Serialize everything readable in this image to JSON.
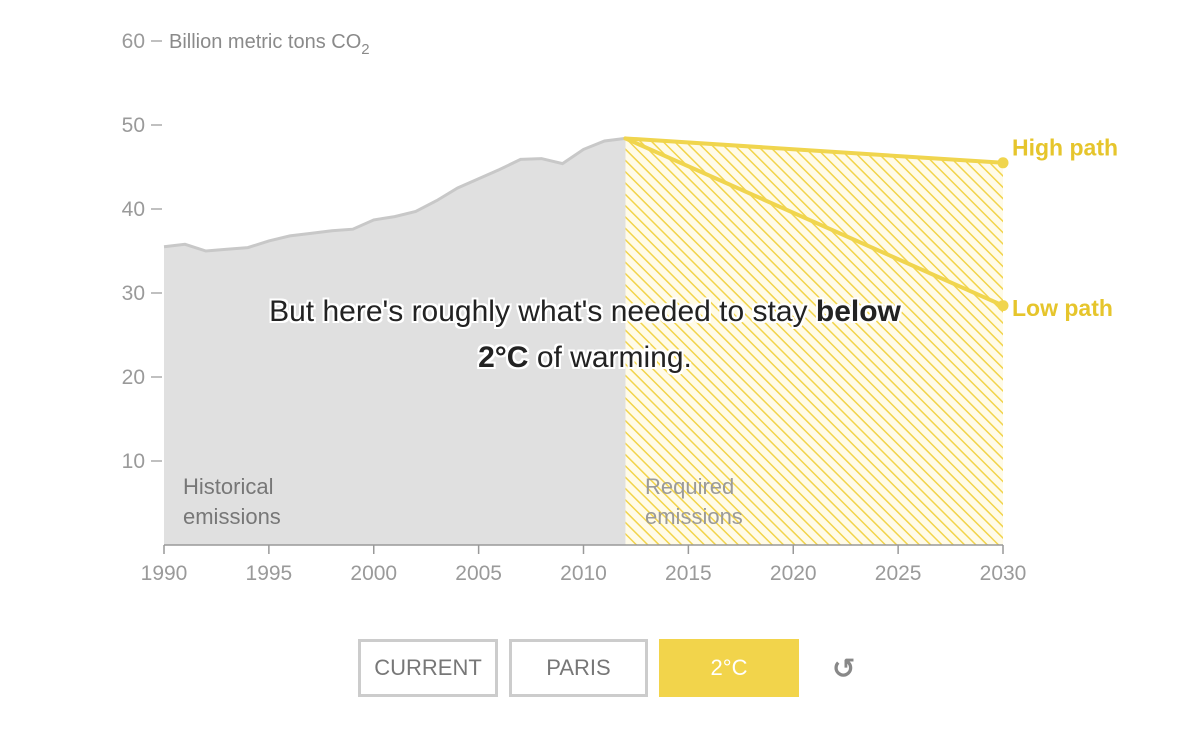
{
  "chart_data": {
    "type": "area",
    "unit_label": "Billion metric tons CO",
    "unit_subscript": "2",
    "x_ticks": [
      "1990",
      "1995",
      "2000",
      "2005",
      "2010",
      "2015",
      "2020",
      "2025",
      "2030"
    ],
    "y_ticks": [
      "10",
      "20",
      "30",
      "40",
      "50",
      "60"
    ],
    "xlim": [
      1990,
      2030
    ],
    "ylim": [
      0,
      60
    ],
    "historical": {
      "label_line1": "Historical",
      "label_line2": "emissions",
      "x": [
        1990,
        1991,
        1992,
        1993,
        1994,
        1995,
        1996,
        1997,
        1998,
        1999,
        2000,
        2001,
        2002,
        2003,
        2004,
        2005,
        2006,
        2007,
        2008,
        2009,
        2010,
        2011,
        2012
      ],
      "y": [
        35.5,
        35.8,
        35.0,
        35.2,
        35.4,
        36.2,
        36.8,
        37.1,
        37.4,
        37.6,
        38.7,
        39.1,
        39.7,
        41.0,
        42.5,
        43.6,
        44.7,
        45.9,
        46.0,
        45.4,
        47.1,
        48.1,
        48.4
      ]
    },
    "required": {
      "label_line1": "Required",
      "label_line2": "emissions",
      "x_start": 2012,
      "x_end": 2030
    },
    "series": [
      {
        "name": "High path",
        "x": [
          2012,
          2030
        ],
        "y": [
          48.4,
          45.5
        ]
      },
      {
        "name": "Low path",
        "x": [
          2012,
          2030
        ],
        "y": [
          48.4,
          28.5
        ]
      }
    ],
    "colors": {
      "historical": "#e0e0e0",
      "historical_line": "#c8c8c8",
      "required": "#f2d44b",
      "path": "#f0d54e"
    }
  },
  "caption": {
    "before": "But here's roughly what's needed to stay ",
    "bold": "below 2°C",
    "after": " of warming."
  },
  "controls": {
    "current": "CURRENT",
    "paris": "PARIS",
    "two_c": "2°C",
    "reset_icon": "↺"
  }
}
